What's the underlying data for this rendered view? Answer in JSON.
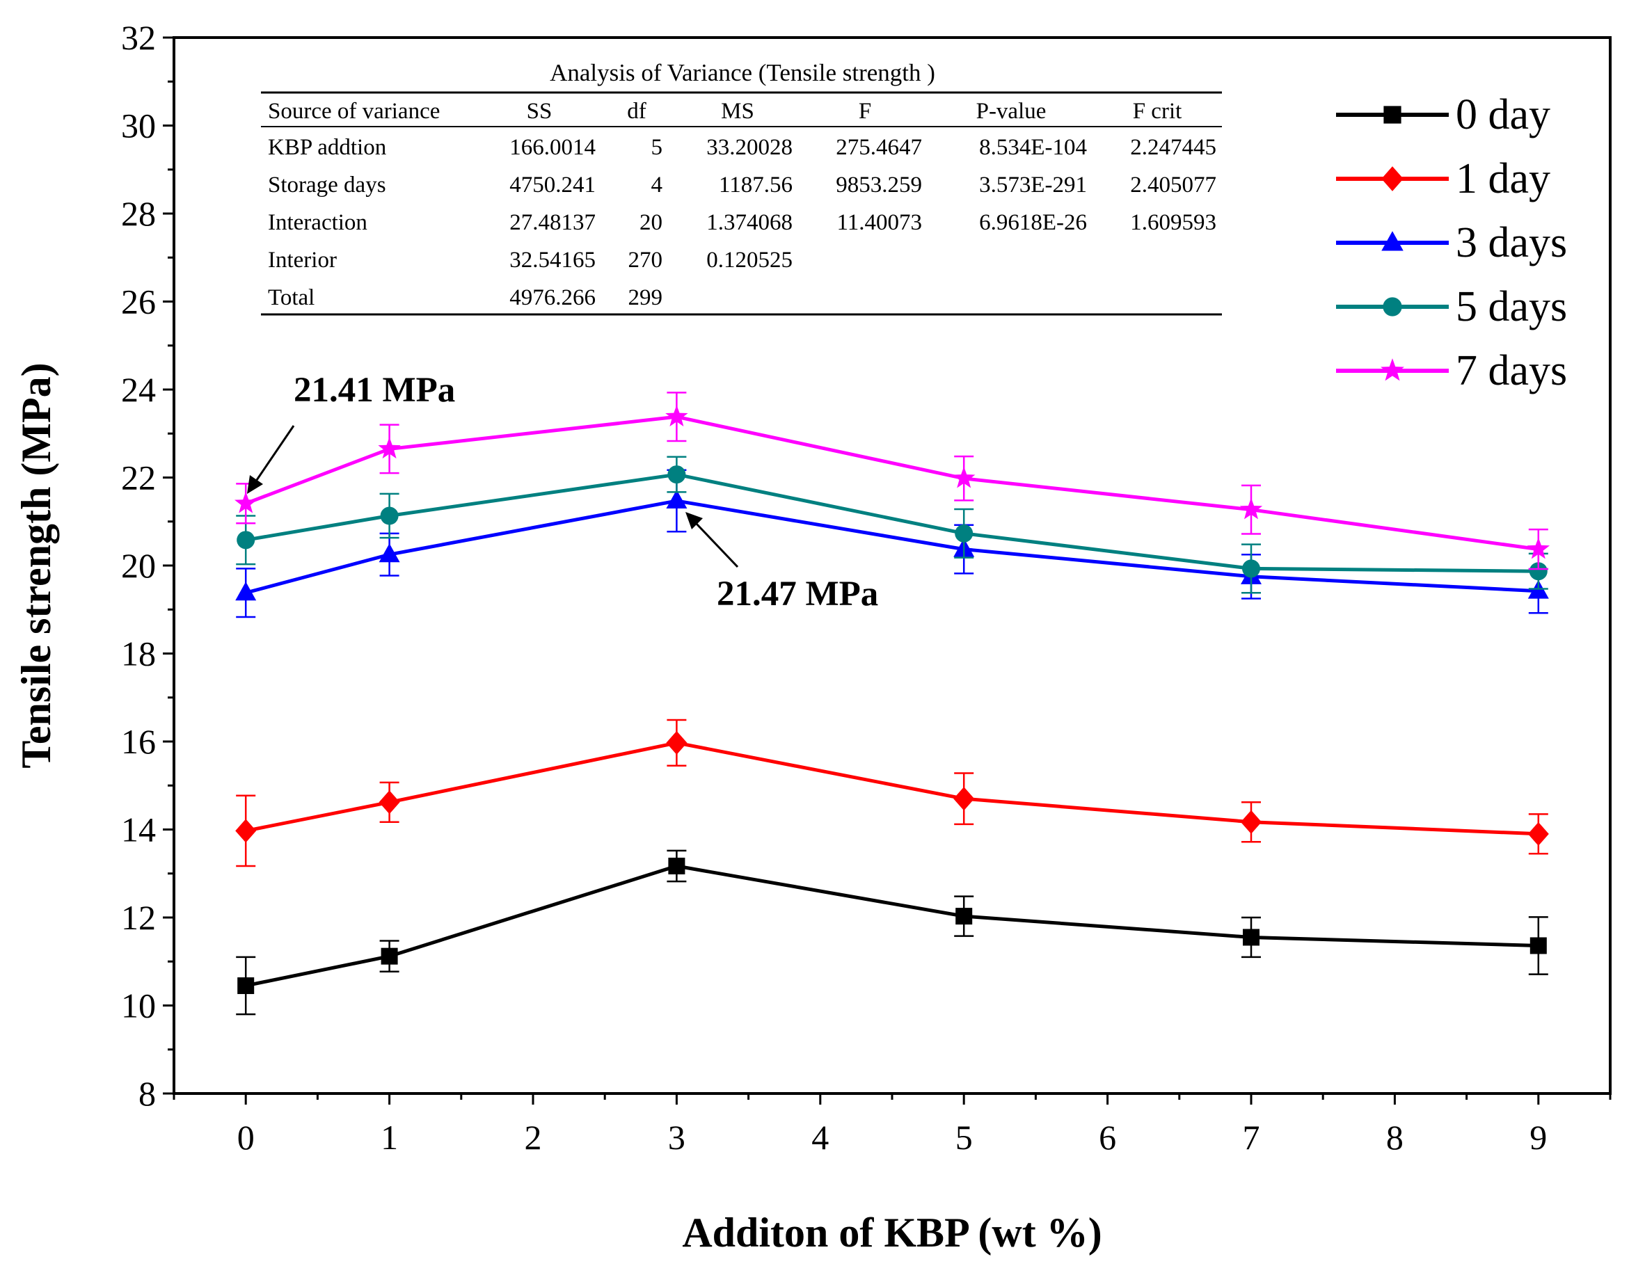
{
  "chart_data": {
    "type": "line",
    "title": "",
    "xlabel": "Additon of KBP (wt %)",
    "ylabel": "Tensile strength (MPa)",
    "xlim": [
      -0.5,
      9.5
    ],
    "ylim": [
      8,
      32
    ],
    "xticks": [
      0,
      1,
      2,
      3,
      4,
      5,
      6,
      7,
      8,
      9
    ],
    "yticks": [
      8,
      10,
      12,
      14,
      16,
      18,
      20,
      22,
      24,
      26,
      28,
      30,
      32
    ],
    "x": [
      0,
      1,
      3,
      5,
      7,
      9
    ],
    "grid": false,
    "legend_position": "top-right",
    "series": [
      {
        "name": "0 day",
        "color": "#000000",
        "marker": "square",
        "values": [
          10.45,
          11.12,
          13.17,
          12.03,
          11.55,
          11.36
        ],
        "errors": [
          0.65,
          0.35,
          0.35,
          0.45,
          0.45,
          0.65
        ]
      },
      {
        "name": "1 day",
        "color": "#ff0000",
        "marker": "diamond",
        "values": [
          13.97,
          14.62,
          15.97,
          14.7,
          14.17,
          13.9
        ],
        "errors": [
          0.8,
          0.45,
          0.52,
          0.58,
          0.45,
          0.45
        ]
      },
      {
        "name": "3 days",
        "color": "#0000ff",
        "marker": "triangle",
        "values": [
          19.38,
          20.25,
          21.47,
          20.37,
          19.75,
          19.42
        ],
        "errors": [
          0.55,
          0.48,
          0.7,
          0.55,
          0.5,
          0.5
        ]
      },
      {
        "name": "5 days",
        "color": "#008080",
        "marker": "circle",
        "values": [
          20.58,
          21.13,
          22.07,
          20.73,
          19.93,
          19.87
        ],
        "errors": [
          0.55,
          0.5,
          0.4,
          0.55,
          0.55,
          0.4
        ]
      },
      {
        "name": "7 days",
        "color": "#ff00ff",
        "marker": "star",
        "values": [
          21.41,
          22.65,
          23.38,
          21.98,
          21.27,
          20.37
        ],
        "errors": [
          0.45,
          0.55,
          0.55,
          0.5,
          0.55,
          0.45
        ]
      }
    ],
    "annotations": [
      {
        "text": "21.41 MPa",
        "series": "7 days",
        "x": 0,
        "y": 21.41
      },
      {
        "text": "21.47 MPa",
        "series": "3 days",
        "x": 3,
        "y": 21.47
      }
    ],
    "anova_table": {
      "title": "Analysis of Variance (Tensile strength )",
      "headers": [
        "Source of variance",
        "SS",
        "df",
        "MS",
        "F",
        "P-value",
        "F crit"
      ],
      "rows": [
        [
          "KBP addtion",
          "166.0014",
          "5",
          "33.20028",
          "275.4647",
          "8.534E-104",
          "2.247445"
        ],
        [
          "Storage days",
          "4750.241",
          "4",
          "1187.56",
          "9853.259",
          "3.573E-291",
          "2.405077"
        ],
        [
          "Interaction",
          "27.48137",
          "20",
          "1.374068",
          "11.40073",
          "6.9618E-26",
          "1.609593"
        ],
        [
          "Interior",
          "32.54165",
          "270",
          "0.120525",
          "",
          "",
          ""
        ],
        [
          "Total",
          "4976.266",
          "299",
          "",
          "",
          "",
          ""
        ]
      ]
    }
  }
}
